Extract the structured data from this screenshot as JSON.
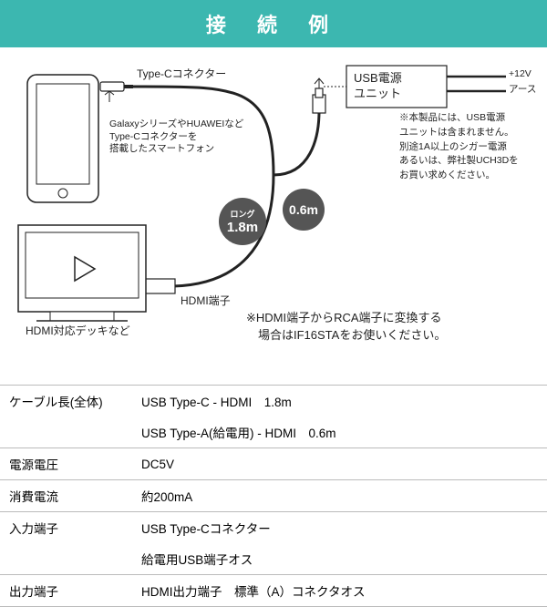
{
  "header_title": "接 続 例",
  "labels": {
    "typec_connector": "Type-Cコネクター",
    "phone_desc": "GalaxyシリーズやHUAWEIなど\nType-Cコネクターを\n搭載したスマートフォン",
    "hdmi_deck": "HDMI対応デッキなど",
    "hdmi_terminal": "HDMI端子",
    "usb_power_unit": "USB電源\nユニット",
    "plus12v": "+12V",
    "gnd": "アース",
    "power_note": "※本製品には、USB電源\nユニットは含まれません。\n別途1A以上のシガー電源\nあるいは、弊社製UCH3Dを\nお買い求めください。",
    "hdmi_rca_note": "※HDMI端子からRCA端子に変換する\n　場合はIF16STAをお使いください。",
    "long_tag": "ロング",
    "len_long": "1.8m",
    "len_short": "0.6m"
  },
  "specs": [
    {
      "k": "ケーブル長(全体)",
      "v": "USB Type-C - HDMI　1.8m"
    },
    {
      "k": "",
      "v": "USB Type-A(給電用) - HDMI　0.6m"
    },
    {
      "k": "電源電圧",
      "v": "DC5V"
    },
    {
      "k": "消費電流",
      "v": "約200mA"
    },
    {
      "k": "入力端子",
      "v": "USB Type-Cコネクター"
    },
    {
      "k": "",
      "v": "給電用USB端子オス"
    },
    {
      "k": "出力端子",
      "v": "HDMI出力端子　標準（A）コネクタオス"
    }
  ],
  "colors": {
    "header_bg": "#3cb7b0",
    "badge_bg": "#555555",
    "line": "#222222",
    "border": "#bbbbbb"
  }
}
